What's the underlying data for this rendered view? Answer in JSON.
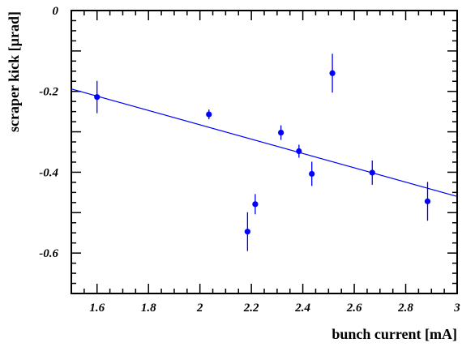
{
  "chart_data": {
    "type": "scatter",
    "title": "",
    "xlabel": "bunch current [mA]",
    "ylabel": "scraper kick [µrad]",
    "xlim": [
      1.5,
      3.0
    ],
    "ylim": [
      -0.7,
      0.0
    ],
    "x_ticks": [
      1.6,
      1.8,
      2,
      2.2,
      2.4,
      2.6,
      2.8,
      3
    ],
    "x_tick_labels": [
      "1.6",
      "1.8",
      "2",
      "2.2",
      "2.4",
      "2.6",
      "2.8",
      "3"
    ],
    "y_ticks": [
      0,
      -0.2,
      -0.4,
      -0.6
    ],
    "y_tick_labels": [
      "0",
      "-0.2",
      "-0.4",
      "-0.6"
    ],
    "grid": false,
    "series": [
      {
        "color": "#0000ff",
        "marker": "circle",
        "x": [
          1.6,
          2.035,
          2.185,
          2.215,
          2.315,
          2.385,
          2.435,
          2.515,
          2.67,
          2.885
        ],
        "y": [
          -0.214,
          -0.257,
          -0.547,
          -0.479,
          -0.302,
          -0.348,
          -0.404,
          -0.155,
          -0.401,
          -0.472
        ],
        "err": [
          0.04,
          0.012,
          0.048,
          0.025,
          0.018,
          0.016,
          0.03,
          0.048,
          0.03,
          0.048
        ]
      }
    ],
    "fit_line": {
      "color": "#0000ff",
      "x": [
        1.5,
        3.0
      ],
      "y": [
        -0.194,
        -0.46
      ]
    }
  }
}
